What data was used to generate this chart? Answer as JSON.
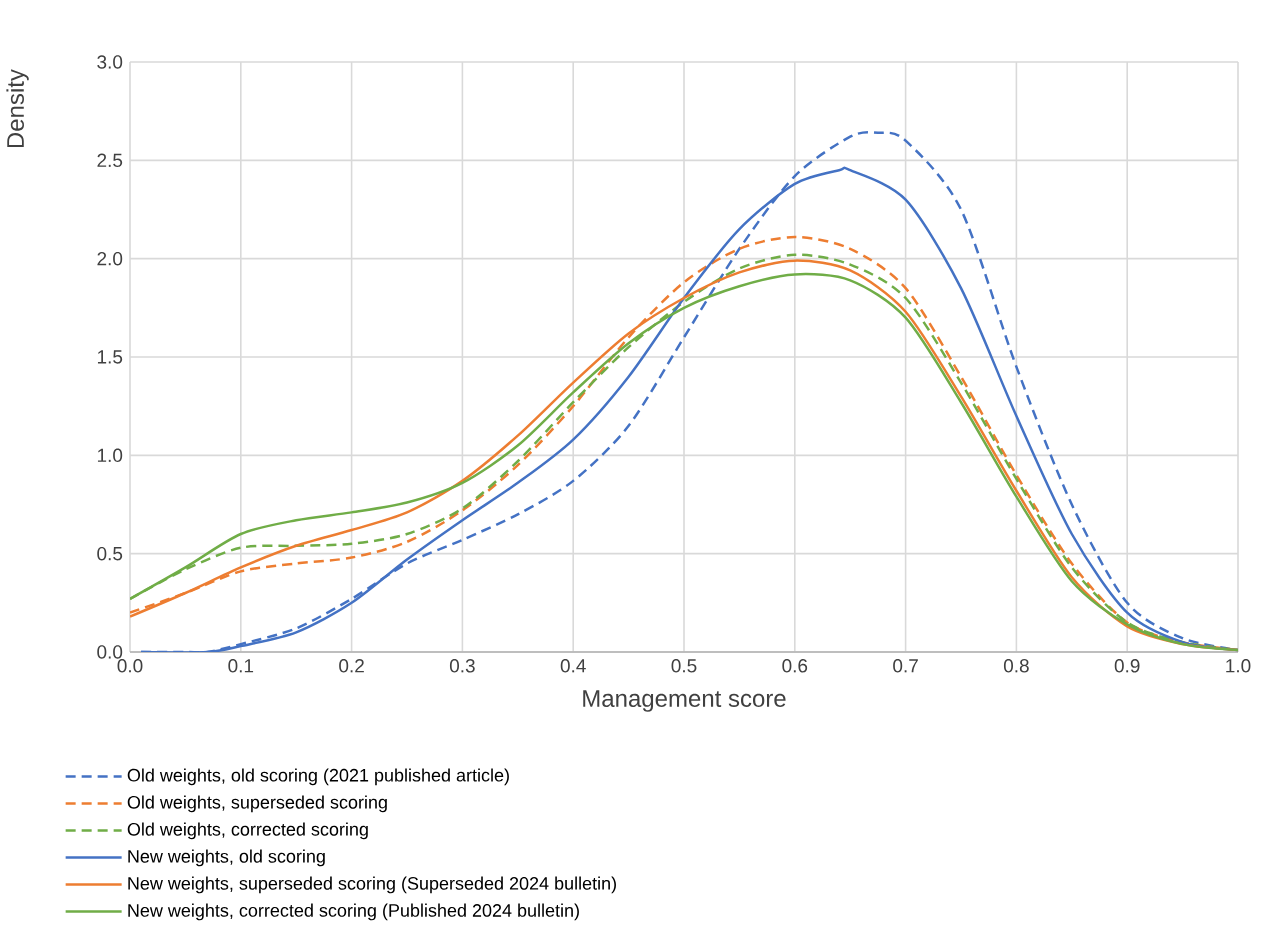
{
  "chart_data": {
    "type": "line",
    "xlabel": "Management score",
    "ylabel": "Density",
    "xlim": [
      0,
      1
    ],
    "ylim": [
      0,
      3
    ],
    "xticks": [
      {
        "value": 0,
        "label": "0.0"
      },
      {
        "value": 0.1,
        "label": "0.1"
      },
      {
        "value": 0.2,
        "label": "0.2"
      },
      {
        "value": 0.3,
        "label": "0.3"
      },
      {
        "value": 0.4,
        "label": "0.4"
      },
      {
        "value": 0.5,
        "label": "0.5"
      },
      {
        "value": 0.6,
        "label": "0.6"
      },
      {
        "value": 0.7,
        "label": "0.7"
      },
      {
        "value": 0.8,
        "label": "0.8"
      },
      {
        "value": 0.9,
        "label": "0.9"
      },
      {
        "value": 1,
        "label": "1.0"
      }
    ],
    "yticks": [
      {
        "value": 0,
        "label": "0.0"
      },
      {
        "value": 0.5,
        "label": "0.5"
      },
      {
        "value": 1,
        "label": "1.0"
      },
      {
        "value": 1.5,
        "label": "1.5"
      },
      {
        "value": 2,
        "label": "2.0"
      },
      {
        "value": 2.5,
        "label": "2.5"
      },
      {
        "value": 3,
        "label": "3.0"
      }
    ],
    "grid": true,
    "legend": "bottom",
    "series": [
      {
        "name": "Old weights, old scoring (2021 published article)",
        "color": "#4472c4",
        "line_style": "dashed",
        "x": [
          0.01,
          0.05,
          0.07,
          0.1,
          0.15,
          0.2,
          0.25,
          0.3,
          0.35,
          0.4,
          0.45,
          0.5,
          0.55,
          0.6,
          0.65,
          0.675,
          0.7,
          0.75,
          0.8,
          0.85,
          0.9,
          0.95,
          1.0
        ],
        "values": [
          0,
          0,
          0,
          0.04,
          0.12,
          0.27,
          0.45,
          0.57,
          0.7,
          0.87,
          1.15,
          1.6,
          2.05,
          2.42,
          2.62,
          2.64,
          2.6,
          2.25,
          1.45,
          0.75,
          0.25,
          0.07,
          0.01
        ]
      },
      {
        "name": "Old weights, superseded scoring",
        "color": "#ed7d31",
        "line_style": "dashed",
        "x": [
          0,
          0.05,
          0.1,
          0.15,
          0.2,
          0.25,
          0.3,
          0.35,
          0.4,
          0.45,
          0.5,
          0.55,
          0.6,
          0.65,
          0.7,
          0.75,
          0.8,
          0.85,
          0.9,
          0.95,
          1.0
        ],
        "values": [
          0.2,
          0.3,
          0.41,
          0.45,
          0.48,
          0.56,
          0.72,
          0.95,
          1.25,
          1.6,
          1.88,
          2.05,
          2.11,
          2.05,
          1.85,
          1.4,
          0.9,
          0.45,
          0.15,
          0.05,
          0.01
        ]
      },
      {
        "name": "Old weights, corrected scoring",
        "color": "#70ad47",
        "line_style": "dashed",
        "x": [
          0,
          0.05,
          0.1,
          0.15,
          0.2,
          0.25,
          0.3,
          0.35,
          0.4,
          0.45,
          0.5,
          0.55,
          0.6,
          0.65,
          0.7,
          0.75,
          0.8,
          0.85,
          0.9,
          0.95,
          1.0
        ],
        "values": [
          0.27,
          0.42,
          0.53,
          0.54,
          0.55,
          0.6,
          0.73,
          0.97,
          1.27,
          1.55,
          1.78,
          1.95,
          2.02,
          1.97,
          1.8,
          1.37,
          0.88,
          0.43,
          0.15,
          0.05,
          0.01
        ]
      },
      {
        "name": "New weights, old scoring",
        "color": "#4472c4",
        "line_style": "solid",
        "x": [
          0.01,
          0.07,
          0.1,
          0.15,
          0.2,
          0.25,
          0.3,
          0.35,
          0.4,
          0.45,
          0.5,
          0.55,
          0.6,
          0.64,
          0.65,
          0.7,
          0.75,
          0.8,
          0.85,
          0.9,
          0.95,
          1.0
        ],
        "values": [
          0,
          0,
          0.03,
          0.1,
          0.25,
          0.47,
          0.67,
          0.86,
          1.08,
          1.4,
          1.8,
          2.15,
          2.38,
          2.45,
          2.45,
          2.3,
          1.85,
          1.2,
          0.6,
          0.2,
          0.05,
          0.01
        ]
      },
      {
        "name": "New weights, superseded scoring (Superseded 2024 bulletin)",
        "color": "#ed7d31",
        "line_style": "solid",
        "x": [
          0,
          0.05,
          0.1,
          0.15,
          0.2,
          0.25,
          0.3,
          0.35,
          0.4,
          0.45,
          0.5,
          0.55,
          0.6,
          0.65,
          0.7,
          0.75,
          0.8,
          0.85,
          0.9,
          0.95,
          1.0
        ],
        "values": [
          0.18,
          0.3,
          0.43,
          0.54,
          0.62,
          0.71,
          0.87,
          1.1,
          1.37,
          1.62,
          1.8,
          1.93,
          1.99,
          1.94,
          1.73,
          1.3,
          0.82,
          0.38,
          0.13,
          0.04,
          0.01
        ]
      },
      {
        "name": "New weights, corrected scoring (Published 2024 bulletin)",
        "color": "#70ad47",
        "line_style": "solid",
        "x": [
          0,
          0.05,
          0.1,
          0.15,
          0.2,
          0.25,
          0.3,
          0.35,
          0.4,
          0.45,
          0.5,
          0.55,
          0.6,
          0.65,
          0.7,
          0.75,
          0.8,
          0.85,
          0.9,
          0.95,
          1.0
        ],
        "values": [
          0.27,
          0.43,
          0.6,
          0.67,
          0.71,
          0.76,
          0.86,
          1.05,
          1.32,
          1.57,
          1.75,
          1.86,
          1.92,
          1.89,
          1.7,
          1.27,
          0.79,
          0.36,
          0.14,
          0.04,
          0.01
        ]
      }
    ]
  }
}
